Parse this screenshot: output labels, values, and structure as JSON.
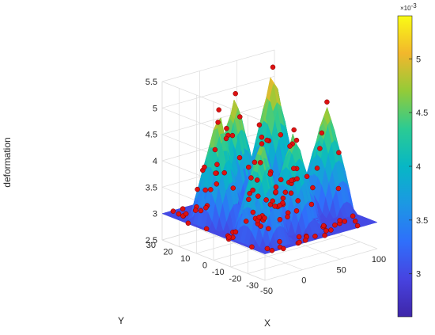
{
  "chart_data": {
    "type": "surface3d",
    "title": "",
    "xlabel": "X",
    "ylabel": "Y",
    "zlabel": "deformation",
    "xlim": [
      -50,
      100
    ],
    "ylim": [
      -30,
      30
    ],
    "zlim": [
      2.5,
      5.5
    ],
    "x_ticks": [
      "-50",
      "0",
      "50",
      "100"
    ],
    "y_ticks": [
      "-30",
      "-20",
      "-10",
      "0",
      "10",
      "20",
      "30"
    ],
    "z_ticks": [
      "2.5",
      "3",
      "3.5",
      "4",
      "4.5",
      "5",
      "5.5"
    ],
    "colorbar": {
      "range": [
        2.6,
        5.4
      ],
      "ticks": [
        "3",
        "3.5",
        "4",
        "4.5",
        "5"
      ],
      "exponent_label": "×10",
      "exponent": "-3",
      "colormap": "parula"
    },
    "marker_color": "#dd1111",
    "peaks": [
      {
        "x": -20,
        "y": 10,
        "z": 5.1
      },
      {
        "x": 25,
        "y": 20,
        "z": 5.1
      },
      {
        "x": 75,
        "y": 20,
        "z": 5.4
      },
      {
        "x": -20,
        "y": -15,
        "z": 4.9
      },
      {
        "x": 30,
        "y": -12,
        "z": 4.8
      },
      {
        "x": 90,
        "y": -5,
        "z": 5.0
      }
    ],
    "base_level": 3.0,
    "grid_on": true
  }
}
